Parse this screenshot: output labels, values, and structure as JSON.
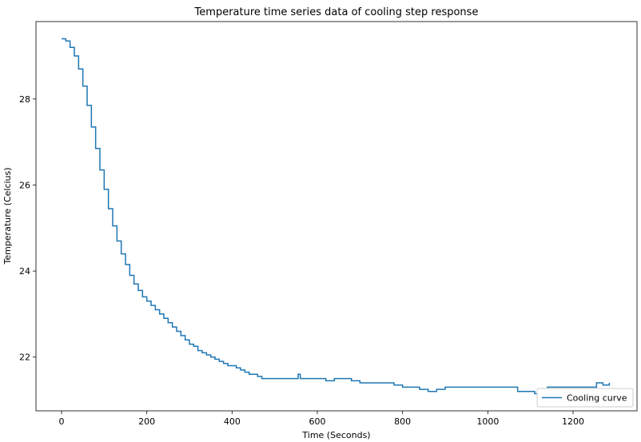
{
  "chart_data": {
    "type": "line",
    "title": "Temperature time series data of cooling step response",
    "xlabel": "Time (Seconds)",
    "ylabel": "Temperature (Celcius)",
    "xlim": [
      -60,
      1350
    ],
    "ylim": [
      20.75,
      29.8
    ],
    "xticks": [
      0,
      200,
      400,
      600,
      800,
      1000,
      1200
    ],
    "yticks": [
      22,
      24,
      26,
      28
    ],
    "grid": false,
    "legend_position": "bottom-right",
    "series": [
      {
        "name": "Cooling curve",
        "color": "#1f77b4",
        "x": [
          0,
          10,
          20,
          30,
          40,
          50,
          60,
          70,
          80,
          90,
          100,
          110,
          120,
          130,
          140,
          150,
          160,
          170,
          180,
          190,
          200,
          210,
          220,
          230,
          240,
          250,
          260,
          270,
          280,
          290,
          300,
          310,
          320,
          330,
          340,
          350,
          360,
          370,
          380,
          390,
          400,
          410,
          420,
          430,
          440,
          450,
          460,
          470,
          500,
          550,
          555,
          560,
          600,
          620,
          640,
          680,
          700,
          730,
          760,
          780,
          800,
          820,
          840,
          860,
          880,
          900,
          1000,
          1050,
          1070,
          1100,
          1110,
          1120,
          1140,
          1200,
          1250,
          1255,
          1270,
          1285
        ],
        "y": [
          29.4,
          29.35,
          29.2,
          29.0,
          28.7,
          28.3,
          27.85,
          27.35,
          26.85,
          26.35,
          25.9,
          25.45,
          25.05,
          24.7,
          24.4,
          24.15,
          23.9,
          23.7,
          23.55,
          23.4,
          23.3,
          23.2,
          23.1,
          23.0,
          22.9,
          22.8,
          22.7,
          22.6,
          22.5,
          22.4,
          22.3,
          22.25,
          22.15,
          22.1,
          22.05,
          22.0,
          21.95,
          21.9,
          21.85,
          21.8,
          21.8,
          21.75,
          21.7,
          21.65,
          21.6,
          21.6,
          21.55,
          21.5,
          21.5,
          21.5,
          21.6,
          21.5,
          21.5,
          21.45,
          21.5,
          21.45,
          21.4,
          21.4,
          21.4,
          21.35,
          21.3,
          21.3,
          21.25,
          21.2,
          21.25,
          21.3,
          21.3,
          21.3,
          21.2,
          21.2,
          21.15,
          21.2,
          21.3,
          21.3,
          21.3,
          21.4,
          21.35,
          21.4
        ]
      }
    ]
  }
}
